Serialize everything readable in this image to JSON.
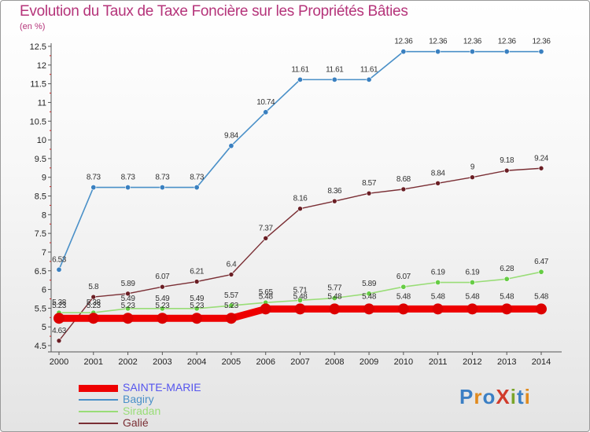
{
  "title": "Evolution du Taux de Taxe Foncière sur les Propriétés Bâties",
  "unit_label": "(en %)",
  "logo": {
    "text": "ProXiti",
    "letters": [
      "P",
      "r",
      "o",
      "X",
      "i",
      "t",
      "i"
    ],
    "colors": [
      "#3b7fc4",
      "#e08a1e",
      "#3b7fc4",
      "#d13b2b",
      "#7aa52a",
      "#3b7fc4",
      "#e08a1e"
    ]
  },
  "chart_data": {
    "type": "line",
    "title": "Evolution du Taux de Taxe Foncière sur les Propriétés Bâties",
    "ylabel": "(en %)",
    "xlabel": "",
    "x": [
      "2000",
      "2001",
      "2002",
      "2003",
      "2004",
      "2005",
      "2006",
      "2007",
      "2008",
      "2009",
      "2010",
      "2011",
      "2012",
      "2013",
      "2014"
    ],
    "ylim": [
      4.5,
      12.5
    ],
    "yticks": [
      "4.5",
      "5",
      "5.5",
      "6",
      "6.5",
      "7",
      "7.5",
      "8",
      "8.5",
      "9",
      "9.5",
      "10",
      "10.5",
      "11",
      "11.5",
      "12",
      "12.5"
    ],
    "grid": false,
    "legend_position": "bottom-left",
    "series": [
      {
        "name": "SAINTE-MARIE",
        "color": "#ee0000",
        "label_color": "#5555ee",
        "values": [
          5.23,
          5.23,
          5.23,
          5.23,
          5.23,
          5.23,
          5.48,
          5.48,
          5.48,
          5.48,
          5.48,
          5.48,
          5.48,
          5.48,
          5.48
        ],
        "labels": [
          "5.23",
          "5.23",
          "5.23",
          "5.23",
          "5.23",
          "5.23",
          "5.48",
          "5.48",
          "5.48",
          "5.48",
          "5.48",
          "5.48",
          "5.48",
          "5.48",
          "5.48"
        ]
      },
      {
        "name": "Bagiry",
        "color": "#4a90c8",
        "label_color": "#4a90c8",
        "values": [
          6.53,
          8.73,
          8.73,
          8.73,
          8.73,
          9.84,
          10.74,
          11.61,
          11.61,
          11.61,
          12.36,
          12.36,
          12.36,
          12.36,
          12.36
        ],
        "labels": [
          "6.53",
          "8.73",
          "8.73",
          "8.73",
          "8.73",
          "9.84",
          "10.74",
          "11.61",
          "11.61",
          "11.61",
          "12.36",
          "12.36",
          "12.36",
          "12.36",
          "12.36"
        ]
      },
      {
        "name": "Siradan",
        "color": "#99dd77",
        "label_color": "#99dd77",
        "values": [
          5.38,
          5.38,
          5.49,
          5.49,
          5.49,
          5.57,
          5.65,
          5.71,
          5.77,
          5.89,
          6.07,
          6.19,
          6.19,
          6.28,
          6.47
        ],
        "labels": [
          "5.38",
          "5.38",
          "5.49",
          "5.49",
          "5.49",
          "5.57",
          "5.65",
          "5.71",
          "5.77",
          "5.89",
          "6.07",
          "6.19",
          "6.19",
          "6.28",
          "6.47"
        ]
      },
      {
        "name": "Galié",
        "color": "#7a2e34",
        "label_color": "#7a2e34",
        "values": [
          4.63,
          5.8,
          5.89,
          6.07,
          6.21,
          6.4,
          7.37,
          8.16,
          8.36,
          8.57,
          8.68,
          8.84,
          9,
          9.18,
          9.24
        ],
        "labels": [
          "4.63",
          "5.8",
          "5.89",
          "6.07",
          "6.21",
          "6.4",
          "7.37",
          "8.16",
          "8.36",
          "8.57",
          "8.68",
          "8.84",
          "9",
          "9.18",
          "9.24"
        ]
      }
    ]
  }
}
